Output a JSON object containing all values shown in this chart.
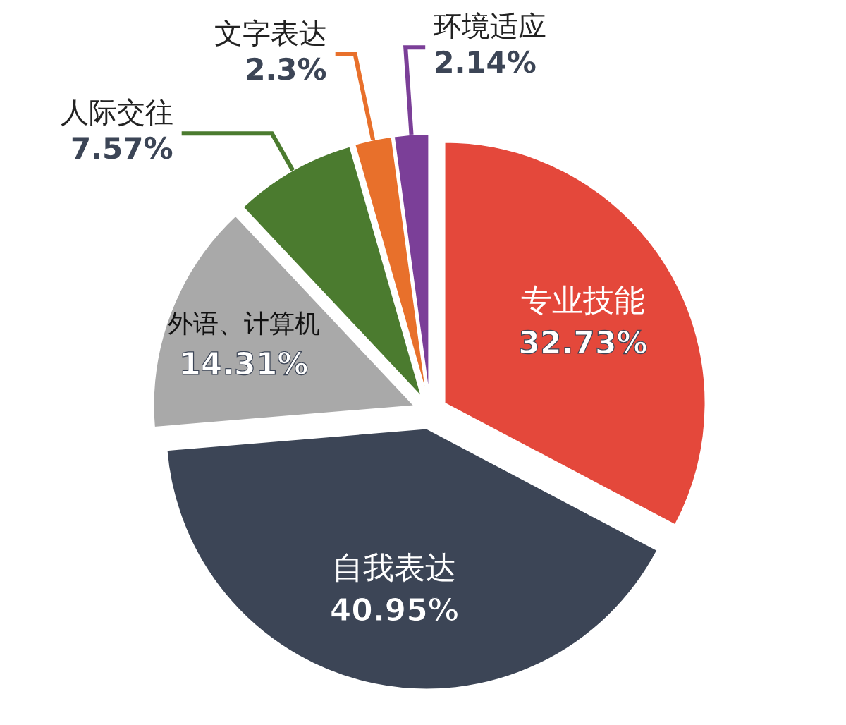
{
  "chart_data": {
    "type": "pie",
    "categories": [
      "专业技能",
      "自我表达",
      "外语、计算机",
      "人际交往",
      "文字表达",
      "环境适应"
    ],
    "values": [
      32.73,
      40.95,
      14.31,
      7.57,
      2.3,
      2.14
    ],
    "value_labels": [
      "32.73%",
      "40.95%",
      "14.31%",
      "7.57%",
      "2.3%",
      "2.14%"
    ],
    "colors": [
      "#e4483b",
      "#3c4556",
      "#a9a9a9",
      "#4b7b2f",
      "#e8702b",
      "#7b3f98"
    ]
  }
}
